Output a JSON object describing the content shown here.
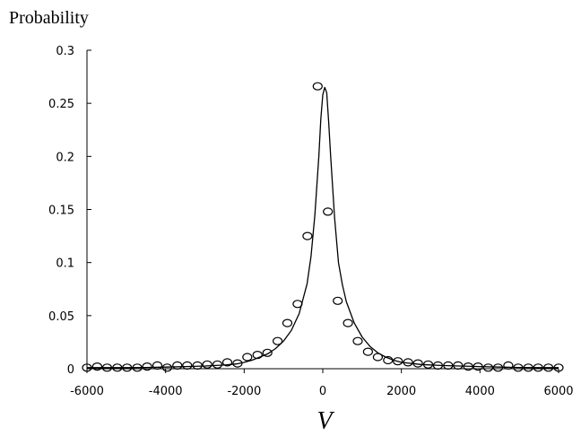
{
  "chart_data": {
    "type": "scatter",
    "title": "",
    "ylabel": "Probability",
    "xlabel": "V",
    "xlim": [
      -6000,
      6000
    ],
    "ylim": [
      0,
      0.3
    ],
    "xticks": [
      "-6000",
      "-4000",
      "-2000",
      "0",
      "2000",
      "4000",
      "6000"
    ],
    "yticks": [
      "0",
      "0.05",
      "0.1",
      "0.15",
      "0.2",
      "0.25",
      "0.3"
    ],
    "grid": false,
    "legend": "none",
    "colors": {
      "axis": "#000000",
      "marker": "#000000",
      "curve": "#000000"
    },
    "series": [
      {
        "type": "scatter",
        "marker": "open-circle",
        "x": [
          -6000,
          -5740,
          -5490,
          -5230,
          -4980,
          -4720,
          -4470,
          -4210,
          -3960,
          -3700,
          -3450,
          -3190,
          -2940,
          -2680,
          -2430,
          -2170,
          -1920,
          -1660,
          -1410,
          -1150,
          -900,
          -640,
          -390,
          -130,
          130,
          380,
          640,
          890,
          1150,
          1400,
          1660,
          1910,
          2170,
          2420,
          2680,
          2930,
          3190,
          3440,
          3700,
          3950,
          4210,
          4460,
          4720,
          4970,
          5230,
          5480,
          5740,
          6000
        ],
        "y": [
          0.001,
          0.002,
          0.001,
          0.001,
          0.001,
          0.001,
          0.002,
          0.003,
          0.001,
          0.003,
          0.003,
          0.003,
          0.004,
          0.004,
          0.006,
          0.005,
          0.011,
          0.013,
          0.015,
          0.026,
          0.043,
          0.061,
          0.125,
          0.266,
          0.148,
          0.064,
          0.043,
          0.026,
          0.016,
          0.011,
          0.008,
          0.007,
          0.006,
          0.005,
          0.004,
          0.003,
          0.003,
          0.003,
          0.002,
          0.002,
          0.001,
          0.001,
          0.003,
          0.001,
          0.001,
          0.001,
          0.001,
          0.001
        ]
      },
      {
        "type": "line",
        "x": [
          -6000,
          -5500,
          -5000,
          -4500,
          -4000,
          -3500,
          -3000,
          -2500,
          -2200,
          -2000,
          -1800,
          -1600,
          -1400,
          -1200,
          -1000,
          -800,
          -600,
          -400,
          -300,
          -200,
          -100,
          -50,
          0,
          50,
          100,
          150,
          200,
          300,
          400,
          500,
          600,
          800,
          1000,
          1200,
          1400,
          1600,
          1800,
          2000,
          2500,
          3000,
          3500,
          4000,
          4500,
          5000,
          5500,
          6000
        ],
        "y": [
          0.001,
          0.001,
          0.001,
          0.0012,
          0.0015,
          0.002,
          0.0025,
          0.0035,
          0.0045,
          0.006,
          0.008,
          0.011,
          0.014,
          0.019,
          0.026,
          0.036,
          0.052,
          0.08,
          0.106,
          0.145,
          0.2,
          0.235,
          0.258,
          0.265,
          0.26,
          0.232,
          0.2,
          0.142,
          0.1,
          0.079,
          0.063,
          0.043,
          0.03,
          0.021,
          0.015,
          0.011,
          0.008,
          0.006,
          0.004,
          0.003,
          0.0025,
          0.002,
          0.0015,
          0.0012,
          0.001,
          0.001
        ]
      }
    ]
  }
}
